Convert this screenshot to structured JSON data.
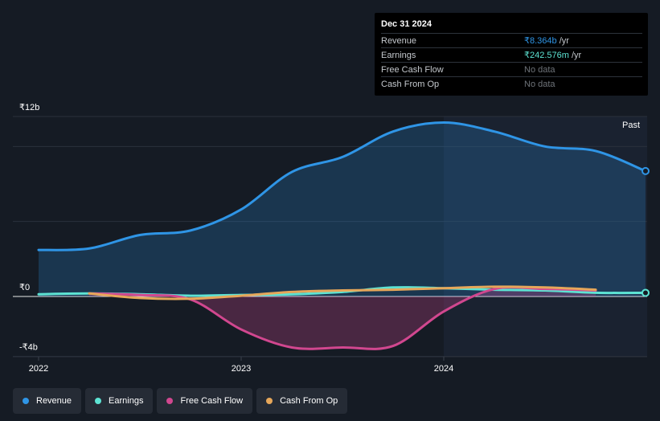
{
  "tooltip": {
    "date": "Dec 31 2024",
    "rows": [
      {
        "label": "Revenue",
        "value": "₹8.364b",
        "unit": " /yr",
        "color": "#2f95e6"
      },
      {
        "label": "Earnings",
        "value": "₹242.576m",
        "unit": " /yr",
        "color": "#5de3d3"
      },
      {
        "label": "Free Cash Flow",
        "value": "No data",
        "unit": "",
        "color": "#6e7379"
      },
      {
        "label": "Cash From Op",
        "value": "No data",
        "unit": "",
        "color": "#6e7379"
      }
    ]
  },
  "past_label": "Past",
  "legend": [
    {
      "label": "Revenue",
      "color": "#2f95e6"
    },
    {
      "label": "Earnings",
      "color": "#5de3d3"
    },
    {
      "label": "Free Cash Flow",
      "color": "#d1478f"
    },
    {
      "label": "Cash From Op",
      "color": "#e6a75a"
    }
  ],
  "chart_data": {
    "type": "line",
    "y_tick_labels": [
      "₹12b",
      "₹0",
      "-₹4b"
    ],
    "y_tick_values": [
      12,
      0,
      -4
    ],
    "x_tick_labels": [
      "2022",
      "2023",
      "2024"
    ],
    "x_tick_values": [
      2022.0,
      2023.0,
      2024.0
    ],
    "xlim": [
      2021.87,
      2025.0
    ],
    "ylim": [
      -4,
      12
    ],
    "unit": "₹ billions",
    "series": [
      {
        "name": "Revenue",
        "color": "#2f95e6",
        "x": [
          2022.0,
          2022.25,
          2022.5,
          2022.75,
          2023.0,
          2023.25,
          2023.5,
          2023.75,
          2024.0,
          2024.25,
          2024.5,
          2024.75,
          2025.0
        ],
        "y": [
          3.1,
          3.2,
          4.1,
          4.4,
          5.8,
          8.3,
          9.3,
          11.0,
          11.6,
          11.0,
          10.0,
          9.7,
          8.364
        ]
      },
      {
        "name": "Earnings",
        "color": "#5de3d3",
        "x": [
          2022.0,
          2022.25,
          2022.5,
          2022.75,
          2023.0,
          2023.25,
          2023.5,
          2023.75,
          2024.0,
          2024.25,
          2024.5,
          2024.75,
          2025.0
        ],
        "y": [
          0.15,
          0.2,
          0.15,
          0.05,
          0.1,
          0.15,
          0.3,
          0.6,
          0.55,
          0.45,
          0.4,
          0.25,
          0.242576
        ]
      },
      {
        "name": "Free Cash Flow",
        "color": "#d1478f",
        "x": [
          2022.25,
          2022.5,
          2022.75,
          2023.0,
          2023.25,
          2023.5,
          2023.75,
          2024.0,
          2024.25,
          2024.5,
          2024.75
        ],
        "y": [
          0.2,
          0.1,
          -0.2,
          -2.2,
          -3.4,
          -3.4,
          -3.3,
          -1.0,
          0.5,
          0.5,
          0.4
        ]
      },
      {
        "name": "Cash From Op",
        "color": "#e6a75a",
        "x": [
          2022.25,
          2022.5,
          2022.75,
          2023.0,
          2023.25,
          2023.5,
          2023.75,
          2024.0,
          2024.25,
          2024.5,
          2024.75
        ],
        "y": [
          0.2,
          -0.1,
          -0.15,
          0.05,
          0.3,
          0.4,
          0.45,
          0.55,
          0.65,
          0.6,
          0.45
        ]
      }
    ],
    "highlight_from_x": 2024.0,
    "legend_position": "bottom"
  }
}
